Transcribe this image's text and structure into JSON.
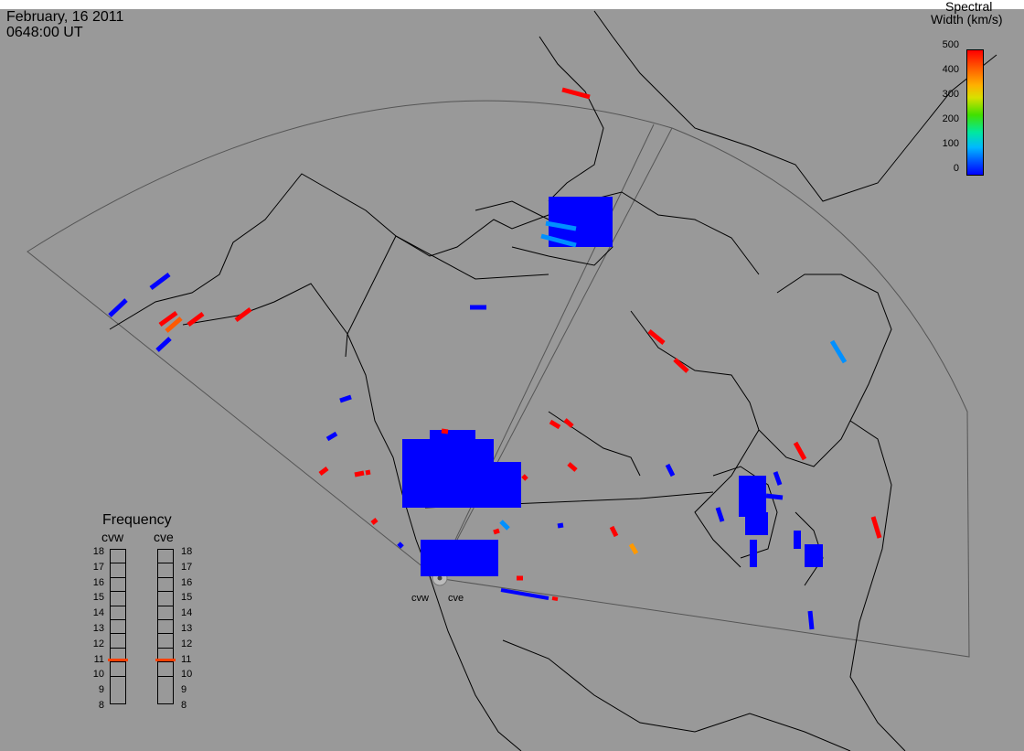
{
  "header": {
    "date": "February, 16 2011",
    "time": "0648:00 UT"
  },
  "color_scale": {
    "title_line1": "Spectral",
    "title_line2": "Width (km/s)",
    "ticks": [
      "500",
      "400",
      "300",
      "200",
      "100",
      "0"
    ],
    "min_value": 0,
    "max_value": 500,
    "colors": [
      "#0000ff",
      "#0050ff",
      "#00b8ff",
      "#00e8a0",
      "#40e000",
      "#d8e000",
      "#ffb000",
      "#ff5a00",
      "#ff0000"
    ]
  },
  "frequency_panel": {
    "title": "Frequency",
    "radars": [
      {
        "label": "cvw",
        "frequency_mhz": 10.8,
        "marker_color": "#ff4000"
      },
      {
        "label": "cve",
        "frequency_mhz": 10.8,
        "marker_color": "#ff4000"
      }
    ],
    "scale_labels": [
      "18",
      "17",
      "16",
      "15",
      "14",
      "13",
      "12",
      "11",
      "10",
      "9",
      "8"
    ]
  },
  "sites": [
    {
      "label": "cvw"
    },
    {
      "label": "cve"
    }
  ],
  "colors": {
    "background": "#999999",
    "coastline": "#000000",
    "field_of_view": "#555555",
    "low_width": "#0000ff",
    "mid_width": "#0090ff",
    "high_width": "#ff0000",
    "orange_width": "#ff5a00",
    "amber_width": "#ff9900"
  }
}
